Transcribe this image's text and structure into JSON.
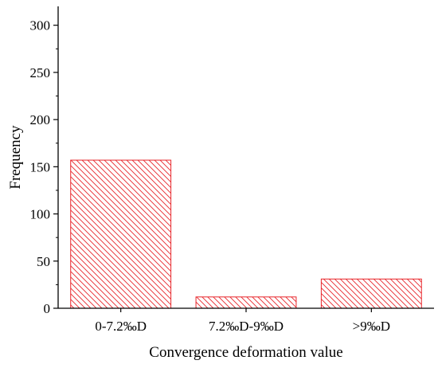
{
  "chart_data": {
    "type": "bar",
    "title": "",
    "xlabel": "Convergence deformation value",
    "ylabel": "Frequency",
    "categories": [
      "0-7.2‰D",
      "7.2‰D-9‰D",
      ">9‰D"
    ],
    "values": [
      157,
      12,
      31
    ],
    "ylim": [
      0,
      320
    ],
    "yticks": [
      0,
      50,
      100,
      150,
      200,
      250,
      300
    ],
    "grid": false,
    "bar_style": {
      "edge_color": "#e8262b",
      "hatch_color": "#e8262b",
      "hatch": "diagonal"
    }
  }
}
